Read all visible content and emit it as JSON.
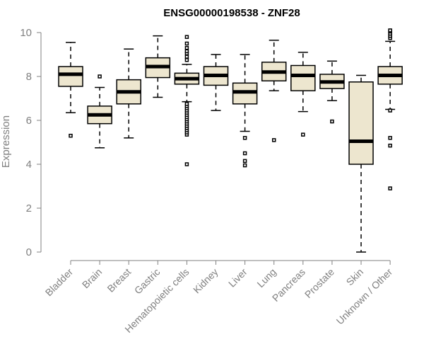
{
  "chart_data": {
    "type": "boxplot",
    "title": "ENSG00000198538 - ZNF28",
    "xlabel": "",
    "ylabel": "Expression",
    "ylim": [
      0,
      10
    ],
    "yticks": [
      0,
      2,
      4,
      6,
      8,
      10
    ],
    "categories": [
      "Bladder",
      "Brain",
      "Breast",
      "Gastric",
      "Hematopoietic cells",
      "Kidney",
      "Liver",
      "Lung",
      "Pancreas",
      "Prostate",
      "Skin",
      "Unknown / Other"
    ],
    "tick_labels": [
      "Bladder",
      "Brain",
      "Breast",
      "Gastric",
      "Hematopoietic cells",
      "Kidney",
      "Liver",
      "Lung",
      "Pancreas",
      "Prostate",
      "Skin",
      "Unknown / Other"
    ],
    "boxes": [
      {
        "name": "Bladder",
        "whisker_low": 6.35,
        "q1": 7.55,
        "median": 8.1,
        "q3": 8.45,
        "whisker_high": 9.55,
        "outliers": [
          5.3
        ]
      },
      {
        "name": "Brain",
        "whisker_low": 4.75,
        "q1": 5.85,
        "median": 6.25,
        "q3": 6.65,
        "whisker_high": 7.5,
        "outliers": [
          8.0
        ]
      },
      {
        "name": "Breast",
        "whisker_low": 5.2,
        "q1": 6.75,
        "median": 7.3,
        "q3": 7.85,
        "whisker_high": 9.25,
        "outliers": []
      },
      {
        "name": "Gastric",
        "whisker_low": 7.05,
        "q1": 7.95,
        "median": 8.45,
        "q3": 8.85,
        "whisker_high": 9.85,
        "outliers": []
      },
      {
        "name": "Hematopoietic cells",
        "whisker_low": 6.85,
        "q1": 7.65,
        "median": 7.9,
        "q3": 8.15,
        "whisker_high": 8.55,
        "outliers": [
          4.0,
          5.35,
          5.45,
          5.55,
          5.65,
          5.75,
          5.85,
          5.95,
          6.05,
          6.15,
          6.25,
          6.35,
          6.45,
          6.55,
          6.65,
          6.75,
          8.75,
          8.9,
          9.05,
          9.15,
          9.3,
          9.5,
          9.8
        ]
      },
      {
        "name": "Kidney",
        "whisker_low": 6.45,
        "q1": 7.6,
        "median": 8.05,
        "q3": 8.45,
        "whisker_high": 9.0,
        "outliers": []
      },
      {
        "name": "Liver",
        "whisker_low": 5.5,
        "q1": 6.75,
        "median": 7.3,
        "q3": 7.7,
        "whisker_high": 9.0,
        "outliers": [
          3.95,
          4.15,
          4.5,
          5.2
        ]
      },
      {
        "name": "Lung",
        "whisker_low": 7.35,
        "q1": 7.8,
        "median": 8.2,
        "q3": 8.65,
        "whisker_high": 9.65,
        "outliers": [
          5.1
        ]
      },
      {
        "name": "Pancreas",
        "whisker_low": 6.4,
        "q1": 7.35,
        "median": 8.05,
        "q3": 8.5,
        "whisker_high": 9.1,
        "outliers": [
          5.35
        ]
      },
      {
        "name": "Prostate",
        "whisker_low": 6.9,
        "q1": 7.45,
        "median": 7.75,
        "q3": 8.1,
        "whisker_high": 8.7,
        "outliers": [
          5.95
        ]
      },
      {
        "name": "Skin",
        "whisker_low": 0.0,
        "q1": 4.0,
        "median": 5.05,
        "q3": 7.75,
        "whisker_high": 8.05,
        "outliers": []
      },
      {
        "name": "Unknown / Other",
        "whisker_low": 6.5,
        "q1": 7.65,
        "median": 8.05,
        "q3": 8.45,
        "whisker_high": 9.6,
        "outliers": [
          2.9,
          4.85,
          5.2,
          6.45,
          9.75,
          9.85,
          9.95,
          10.05,
          10.1
        ]
      }
    ]
  }
}
